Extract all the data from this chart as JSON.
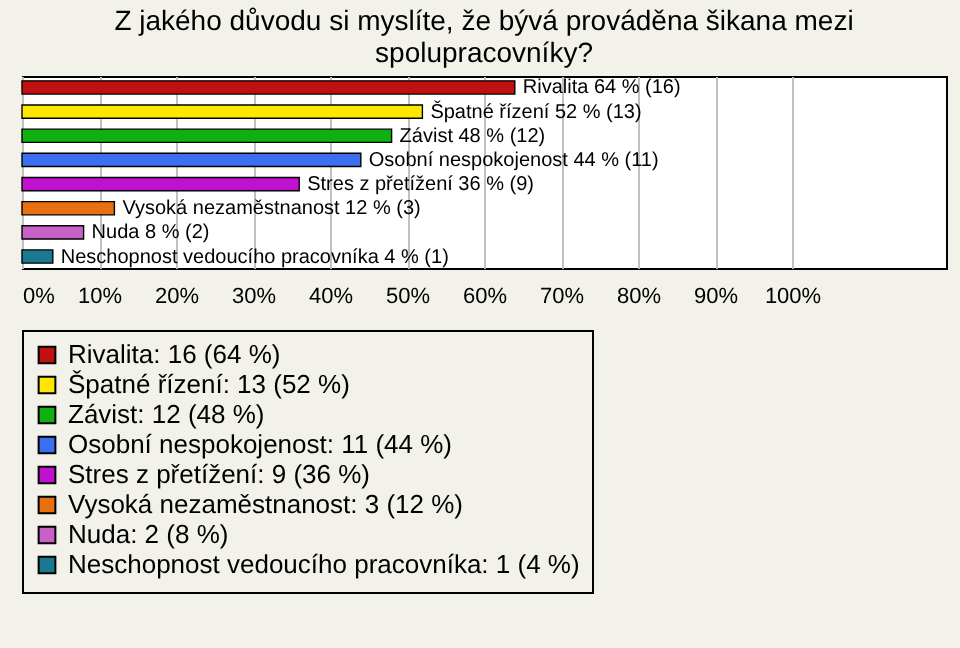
{
  "chart_data": {
    "type": "bar",
    "orientation": "horizontal",
    "stacked": true,
    "title": "Z jakého důvodu si myslíte, že bývá prováděna šikana mezi spolupracovníky?",
    "categories": [
      null,
      null,
      null,
      null,
      null,
      null,
      null,
      null
    ],
    "series": [
      {
        "name": "Rivalita: 16 (64 %)",
        "color": "#c01010",
        "values": [
          64,
          null,
          null,
          null,
          null,
          null,
          null,
          null
        ],
        "value_labels": [
          "Rivalita 64 % (16)",
          null,
          null,
          null,
          null,
          null,
          null,
          null
        ]
      },
      {
        "name": "Špatné řízení: 13 (52 %)",
        "color": "#ffe800",
        "values": [
          null,
          52,
          null,
          null,
          null,
          null,
          null,
          null
        ],
        "value_labels": [
          null,
          "Špatné řízení 52 % (13)",
          null,
          null,
          null,
          null,
          null,
          null
        ]
      },
      {
        "name": "Závist: 12 (48 %)",
        "color": "#10b010",
        "values": [
          null,
          null,
          48,
          null,
          null,
          null,
          null,
          null
        ],
        "value_labels": [
          null,
          null,
          "Závist 48 % (12)",
          null,
          null,
          null,
          null,
          null
        ]
      },
      {
        "name": "Osobní nespokojenost: 11 (44 %)",
        "color": "#3a6ff0",
        "values": [
          null,
          null,
          null,
          44,
          null,
          null,
          null,
          null
        ],
        "value_labels": [
          null,
          null,
          null,
          "Osobní nespokojenost 44 % (11)",
          null,
          null,
          null,
          null
        ]
      },
      {
        "name": "Stres z přetížení: 9 (36 %)",
        "color": "#c010d0",
        "values": [
          null,
          null,
          null,
          null,
          36,
          null,
          null,
          null
        ],
        "value_labels": [
          null,
          null,
          null,
          null,
          "Stres z přetížení 36 % (9)",
          null,
          null,
          null
        ]
      },
      {
        "name": "Vysoká nezaměstnanost: 3 (12 %)",
        "color": "#e87010",
        "values": [
          null,
          null,
          null,
          null,
          null,
          12,
          null,
          null
        ],
        "value_labels": [
          null,
          null,
          null,
          null,
          null,
          "Vysoká nezaměstnanost 12 % (3)",
          null,
          null
        ]
      },
      {
        "name": "Nuda: 2 (8 %)",
        "color": "#c860c8",
        "values": [
          null,
          null,
          null,
          null,
          null,
          null,
          8,
          null
        ],
        "value_labels": [
          null,
          null,
          null,
          null,
          null,
          null,
          "Nuda 8 % (2)",
          null
        ]
      },
      {
        "name": "Neschopnost vedoucího pracovníka: 1 (4 %)",
        "color": "#1a7890",
        "values": [
          null,
          null,
          null,
          null,
          null,
          null,
          null,
          4
        ],
        "value_labels": [
          null,
          null,
          null,
          null,
          null,
          null,
          null,
          "Neschopnost vedoucího pracovníka 4 % (1)"
        ]
      }
    ],
    "xlim": [
      0,
      120
    ],
    "xticks": [
      {
        "value": 0,
        "label": "0%"
      },
      {
        "value": 10,
        "label": "10%"
      },
      {
        "value": 20,
        "label": "20%"
      },
      {
        "value": 30,
        "label": "30%"
      },
      {
        "value": 40,
        "label": "40%"
      },
      {
        "value": 50,
        "label": "50%"
      },
      {
        "value": 60,
        "label": "60%"
      },
      {
        "value": 70,
        "label": "70%"
      },
      {
        "value": 80,
        "label": "80%"
      },
      {
        "value": 90,
        "label": "90%"
      },
      {
        "value": 100,
        "label": "100%"
      }
    ],
    "grid": "x",
    "legend": "bottom",
    "tick_labels": "x"
  }
}
